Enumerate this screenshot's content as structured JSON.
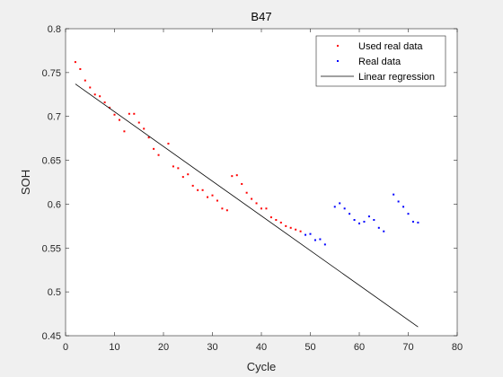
{
  "chart_data": {
    "type": "scatter",
    "title": "B47",
    "xlabel": "Cycle",
    "ylabel": "SOH",
    "xlim": [
      0,
      80
    ],
    "ylim": [
      0.45,
      0.8
    ],
    "xticks": [
      0,
      10,
      20,
      30,
      40,
      50,
      60,
      70,
      80
    ],
    "yticks": [
      0.45,
      0.5,
      0.55,
      0.6,
      0.65,
      0.7,
      0.75,
      0.8
    ],
    "xtick_labels": [
      "0",
      "10",
      "20",
      "30",
      "40",
      "50",
      "60",
      "70",
      "80"
    ],
    "ytick_labels": [
      "0.45",
      "0.5",
      "0.55",
      "0.6",
      "0.65",
      "0.7",
      "0.75",
      "0.8"
    ],
    "grid": false,
    "legend_position": "top-right",
    "series": [
      {
        "name": "Used real data",
        "kind": "points",
        "color": "#ff0000",
        "x": [
          2,
          3,
          4,
          5,
          6,
          7,
          8,
          9,
          10,
          11,
          12,
          13,
          14,
          15,
          16,
          17,
          18,
          19,
          21,
          22,
          23,
          24,
          25,
          26,
          27,
          28,
          29,
          30,
          31,
          32,
          33,
          34,
          35,
          36,
          37,
          38,
          39,
          40,
          41,
          42,
          43,
          44,
          45,
          46,
          47,
          48
        ],
        "y": [
          0.762,
          0.754,
          0.741,
          0.733,
          0.725,
          0.723,
          0.716,
          0.71,
          0.702,
          0.696,
          0.683,
          0.703,
          0.703,
          0.693,
          0.686,
          0.676,
          0.663,
          0.656,
          0.669,
          0.643,
          0.641,
          0.631,
          0.634,
          0.621,
          0.616,
          0.616,
          0.608,
          0.61,
          0.604,
          0.595,
          0.593,
          0.632,
          0.633,
          0.623,
          0.613,
          0.606,
          0.601,
          0.595,
          0.595,
          0.585,
          0.582,
          0.579,
          0.575,
          0.573,
          0.571,
          0.569
        ]
      },
      {
        "name": "Real data",
        "kind": "points",
        "color": "#0000ff",
        "x": [
          49,
          50,
          51,
          52,
          53,
          55,
          56,
          57,
          58,
          59,
          60,
          61,
          62,
          63,
          64,
          65,
          67,
          68,
          69,
          70,
          71,
          72
        ],
        "y": [
          0.565,
          0.566,
          0.559,
          0.56,
          0.554,
          0.597,
          0.601,
          0.595,
          0.589,
          0.582,
          0.578,
          0.58,
          0.586,
          0.582,
          0.573,
          0.569,
          0.611,
          0.603,
          0.597,
          0.589,
          0.58,
          0.579
        ]
      },
      {
        "name": "Linear regression",
        "kind": "line",
        "color": "#000000",
        "x": [
          2,
          72
        ],
        "y": [
          0.737,
          0.46
        ]
      }
    ]
  }
}
